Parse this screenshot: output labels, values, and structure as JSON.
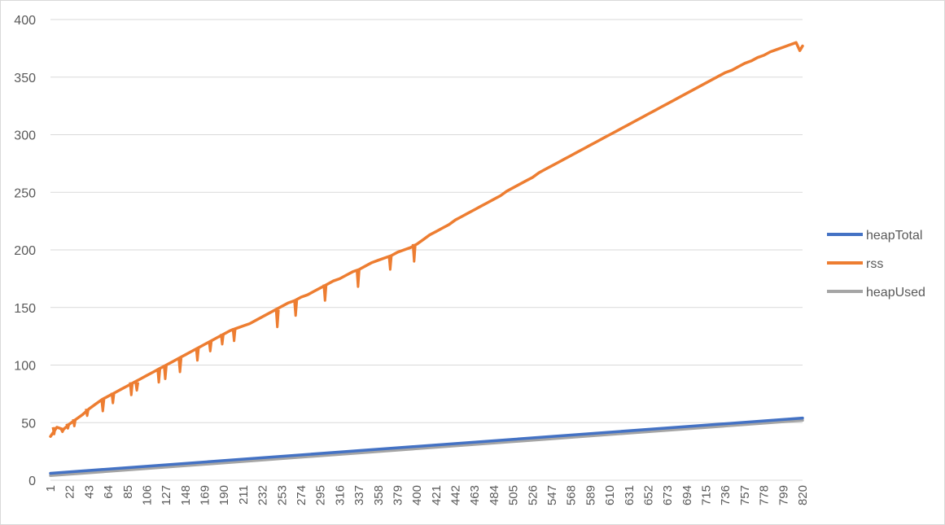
{
  "chart_data": {
    "type": "line",
    "title": "",
    "xlabel": "",
    "ylabel": "",
    "ylim": [
      0,
      400
    ],
    "yticks": [
      0,
      50,
      100,
      150,
      200,
      250,
      300,
      350,
      400
    ],
    "x_range": [
      1,
      820
    ],
    "xtick_labels": [
      "1",
      "22",
      "43",
      "64",
      "85",
      "106",
      "127",
      "148",
      "169",
      "190",
      "211",
      "232",
      "253",
      "274",
      "295",
      "316",
      "337",
      "358",
      "379",
      "400",
      "421",
      "442",
      "463",
      "484",
      "505",
      "526",
      "547",
      "568",
      "589",
      "610",
      "631",
      "652",
      "673",
      "694",
      "715",
      "736",
      "757",
      "778",
      "799",
      "820"
    ],
    "grid": "horizontal",
    "legend_position": "right",
    "series": [
      {
        "name": "heapTotal",
        "color": "#4472C4",
        "points": [
          [
            1,
            6
          ],
          [
            820,
            54
          ]
        ]
      },
      {
        "name": "rss",
        "color": "#ED7D31",
        "points": [
          [
            1,
            38
          ],
          [
            8,
            46
          ],
          [
            15,
            44
          ],
          [
            22,
            49
          ],
          [
            29,
            53
          ],
          [
            36,
            57
          ],
          [
            43,
            62
          ],
          [
            50,
            66
          ],
          [
            57,
            70
          ],
          [
            64,
            73
          ],
          [
            71,
            76
          ],
          [
            78,
            79
          ],
          [
            85,
            82
          ],
          [
            92,
            85
          ],
          [
            99,
            88
          ],
          [
            106,
            91
          ],
          [
            113,
            94
          ],
          [
            120,
            97
          ],
          [
            127,
            100
          ],
          [
            134,
            103
          ],
          [
            141,
            106
          ],
          [
            148,
            109
          ],
          [
            155,
            112
          ],
          [
            162,
            115
          ],
          [
            169,
            118
          ],
          [
            176,
            121
          ],
          [
            183,
            124
          ],
          [
            190,
            127
          ],
          [
            197,
            130
          ],
          [
            204,
            132
          ],
          [
            211,
            134
          ],
          [
            218,
            136
          ],
          [
            225,
            139
          ],
          [
            232,
            142
          ],
          [
            239,
            145
          ],
          [
            246,
            148
          ],
          [
            253,
            151
          ],
          [
            260,
            154
          ],
          [
            267,
            156
          ],
          [
            274,
            159
          ],
          [
            281,
            161
          ],
          [
            288,
            164
          ],
          [
            295,
            167
          ],
          [
            302,
            170
          ],
          [
            309,
            173
          ],
          [
            316,
            175
          ],
          [
            323,
            178
          ],
          [
            330,
            181
          ],
          [
            337,
            183
          ],
          [
            344,
            186
          ],
          [
            351,
            189
          ],
          [
            358,
            191
          ],
          [
            365,
            193
          ],
          [
            372,
            195
          ],
          [
            379,
            198
          ],
          [
            386,
            200
          ],
          [
            393,
            202
          ],
          [
            400,
            205
          ],
          [
            407,
            209
          ],
          [
            414,
            213
          ],
          [
            421,
            216
          ],
          [
            428,
            219
          ],
          [
            435,
            222
          ],
          [
            442,
            226
          ],
          [
            449,
            229
          ],
          [
            456,
            232
          ],
          [
            463,
            235
          ],
          [
            470,
            238
          ],
          [
            477,
            241
          ],
          [
            484,
            244
          ],
          [
            491,
            247
          ],
          [
            498,
            251
          ],
          [
            505,
            254
          ],
          [
            512,
            257
          ],
          [
            519,
            260
          ],
          [
            526,
            263
          ],
          [
            533,
            267
          ],
          [
            540,
            270
          ],
          [
            547,
            273
          ],
          [
            554,
            276
          ],
          [
            561,
            279
          ],
          [
            568,
            282
          ],
          [
            575,
            285
          ],
          [
            582,
            288
          ],
          [
            589,
            291
          ],
          [
            596,
            294
          ],
          [
            603,
            297
          ],
          [
            610,
            300
          ],
          [
            617,
            303
          ],
          [
            624,
            306
          ],
          [
            631,
            309
          ],
          [
            638,
            312
          ],
          [
            645,
            315
          ],
          [
            652,
            318
          ],
          [
            659,
            321
          ],
          [
            666,
            324
          ],
          [
            673,
            327
          ],
          [
            680,
            330
          ],
          [
            687,
            333
          ],
          [
            694,
            336
          ],
          [
            701,
            339
          ],
          [
            708,
            342
          ],
          [
            715,
            345
          ],
          [
            722,
            348
          ],
          [
            729,
            351
          ],
          [
            736,
            354
          ],
          [
            743,
            356
          ],
          [
            750,
            359
          ],
          [
            757,
            362
          ],
          [
            764,
            364
          ],
          [
            771,
            367
          ],
          [
            778,
            369
          ],
          [
            785,
            372
          ],
          [
            792,
            374
          ],
          [
            799,
            376
          ],
          [
            806,
            378
          ],
          [
            813,
            380
          ],
          [
            817,
            373
          ],
          [
            820,
            377
          ]
        ],
        "dips": [
          [
            5,
            40
          ],
          [
            14,
            42
          ],
          [
            20,
            45
          ],
          [
            27,
            47
          ],
          [
            41,
            56
          ],
          [
            58,
            60
          ],
          [
            69,
            67
          ],
          [
            89,
            74
          ],
          [
            95,
            78
          ],
          [
            119,
            85
          ],
          [
            126,
            88
          ],
          [
            142,
            94
          ],
          [
            161,
            104
          ],
          [
            175,
            112
          ],
          [
            188,
            118
          ],
          [
            201,
            121
          ],
          [
            248,
            133
          ],
          [
            268,
            143
          ],
          [
            300,
            156
          ],
          [
            336,
            168
          ],
          [
            371,
            183
          ],
          [
            397,
            190
          ]
        ]
      },
      {
        "name": "heapUsed",
        "color": "#A5A5A5",
        "points": [
          [
            1,
            4
          ],
          [
            820,
            52
          ]
        ]
      }
    ]
  }
}
